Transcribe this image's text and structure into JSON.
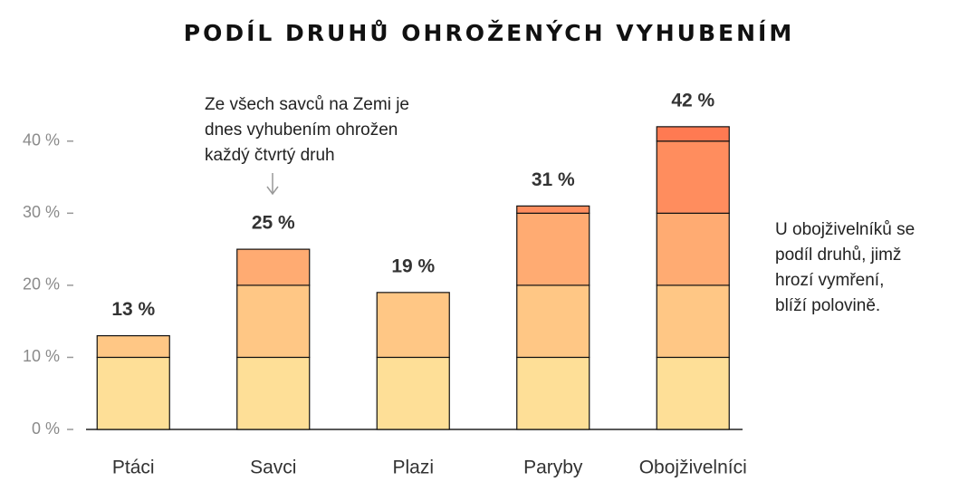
{
  "chart_data": {
    "type": "stacked-bar",
    "title": "PODÍL DRUHŮ OHROŽENÝCH VYHUBENÍM",
    "categories": [
      "Ptáci",
      "Savci",
      "Plazi",
      "Paryby",
      "Obojživelníci"
    ],
    "series": [
      {
        "color": "#fedf97",
        "values": [
          10,
          10,
          10,
          10,
          10
        ]
      },
      {
        "color": "#ffc785",
        "values": [
          3,
          10,
          9,
          10,
          10
        ]
      },
      {
        "color": "#ffab72",
        "values": [
          null,
          5,
          null,
          10,
          10
        ]
      },
      {
        "color": "#ff8d5e",
        "values": [
          null,
          null,
          null,
          1,
          10
        ]
      },
      {
        "color": "#ff7a52",
        "values": [
          null,
          null,
          null,
          null,
          2
        ]
      }
    ],
    "totals": [
      13,
      25,
      19,
      31,
      42
    ],
    "total_labels": [
      "13 %",
      "25 %",
      "19 %",
      "31 %",
      "42 %"
    ],
    "ylim": [
      0,
      45
    ],
    "yticks": [
      {
        "value": 0,
        "label": "0 %"
      },
      {
        "value": 10,
        "label": "10 %"
      },
      {
        "value": 20,
        "label": "20 %"
      },
      {
        "value": 30,
        "label": "30 %"
      },
      {
        "value": 40,
        "label": "40 %"
      }
    ],
    "annotations": [
      {
        "lines": [
          "Ze všech savců na Zemi je",
          "dnes vyhubením ohrožen",
          "každý čtvrtý druh"
        ]
      },
      {
        "lines": [
          "U obojživelníků se",
          "podíl druhů, jimž",
          "hrozí vymření,",
          "blíží polovině."
        ]
      }
    ]
  }
}
